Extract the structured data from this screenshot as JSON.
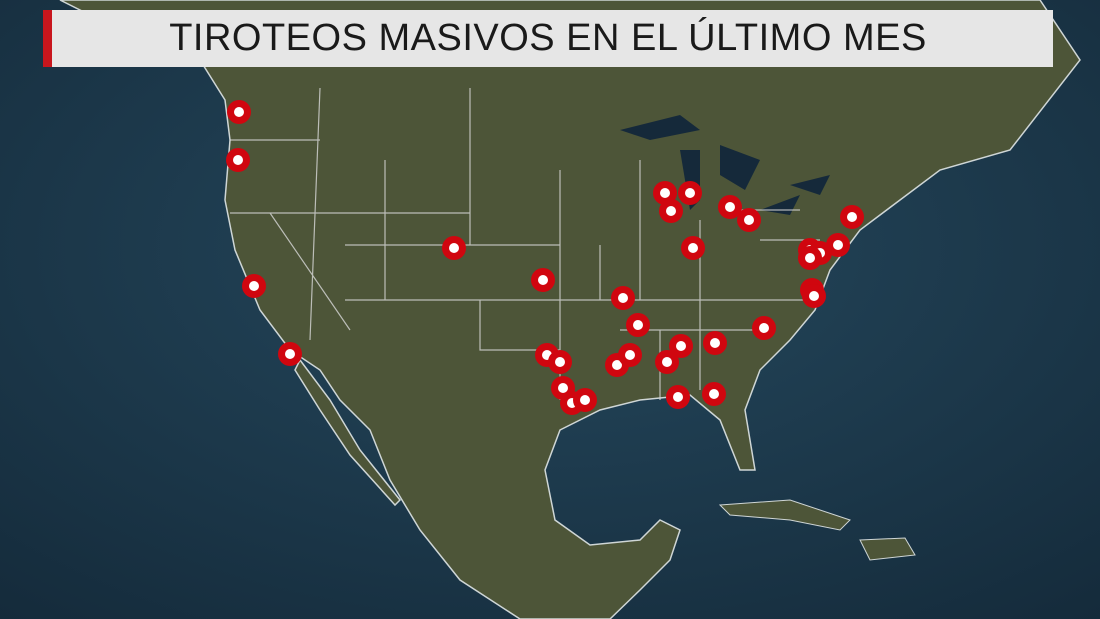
{
  "title": "TIROTEOS MASIVOS EN EL ÚLTIMO MES",
  "colors": {
    "accent": "#c8161d",
    "marker": "#d0060f",
    "ocean": "#1b3447",
    "land": "#4d5538",
    "borders": "#d8d8d8",
    "title_background": "#e6e6e6"
  },
  "marker_icon": "map-pin-ring-icon"
}
